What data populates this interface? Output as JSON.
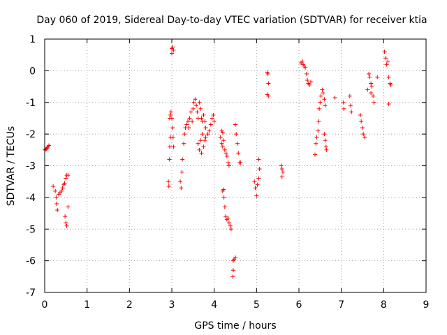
{
  "chart_data": {
    "type": "scatter",
    "title": "Day 060 of 2019, Sidereal Day-to-day VTEC variation (SDTVAR) for receiver ktia",
    "xlabel": "GPS time / hours",
    "ylabel": "SDTVAR / TECUs",
    "xlim": [
      0,
      9
    ],
    "ylim": [
      -7,
      1
    ],
    "xticks": [
      "0",
      "1",
      "2",
      "3",
      "4",
      "5",
      "6",
      "7",
      "8",
      "9"
    ],
    "yticks": [
      "1",
      "0",
      "-1",
      "-2",
      "-3",
      "-4",
      "-5",
      "-6",
      "-7"
    ],
    "grid": true,
    "marker": "+",
    "color": "#ff0000",
    "series": [
      {
        "name": "SDTVAR",
        "points": [
          [
            0.0,
            -2.5
          ],
          [
            0.02,
            -2.48
          ],
          [
            0.04,
            -2.46
          ],
          [
            0.06,
            -2.44
          ],
          [
            0.08,
            -2.4
          ],
          [
            0.1,
            -2.36
          ],
          [
            0.2,
            -3.65
          ],
          [
            0.25,
            -3.8
          ],
          [
            0.27,
            -4.0
          ],
          [
            0.28,
            -4.2
          ],
          [
            0.3,
            -4.4
          ],
          [
            0.33,
            -3.9
          ],
          [
            0.36,
            -3.85
          ],
          [
            0.4,
            -3.8
          ],
          [
            0.42,
            -3.7
          ],
          [
            0.45,
            -3.6
          ],
          [
            0.47,
            -3.55
          ],
          [
            0.5,
            -3.4
          ],
          [
            0.52,
            -3.3
          ],
          [
            0.55,
            -3.3
          ],
          [
            0.48,
            -4.6
          ],
          [
            0.5,
            -4.8
          ],
          [
            0.52,
            -4.9
          ],
          [
            0.55,
            -4.3
          ],
          [
            2.92,
            -3.5
          ],
          [
            2.93,
            -3.65
          ],
          [
            2.94,
            -2.8
          ],
          [
            2.95,
            -2.4
          ],
          [
            2.97,
            -2.1
          ],
          [
            2.95,
            -1.5
          ],
          [
            2.97,
            -1.4
          ],
          [
            2.98,
            -1.3
          ],
          [
            3.0,
            -1.5
          ],
          [
            3.02,
            -1.8
          ],
          [
            3.03,
            -2.1
          ],
          [
            3.04,
            -2.4
          ],
          [
            3.0,
            0.7
          ],
          [
            3.02,
            0.75
          ],
          [
            3.04,
            0.65
          ],
          [
            3.0,
            0.55
          ],
          [
            3.2,
            -3.5
          ],
          [
            3.22,
            -3.7
          ],
          [
            3.24,
            -3.2
          ],
          [
            3.25,
            -2.8
          ],
          [
            3.28,
            -2.3
          ],
          [
            3.3,
            -2.0
          ],
          [
            3.32,
            -1.8
          ],
          [
            3.35,
            -1.7
          ],
          [
            3.38,
            -1.6
          ],
          [
            3.4,
            -1.8
          ],
          [
            3.42,
            -1.5
          ],
          [
            3.45,
            -1.3
          ],
          [
            3.48,
            -1.6
          ],
          [
            3.5,
            -1.2
          ],
          [
            3.52,
            -1.0
          ],
          [
            3.55,
            -0.9
          ],
          [
            3.58,
            -1.1
          ],
          [
            3.6,
            -1.3
          ],
          [
            3.62,
            -1.5
          ],
          [
            3.65,
            -1.0
          ],
          [
            3.68,
            -1.2
          ],
          [
            3.7,
            -1.5
          ],
          [
            3.72,
            -1.6
          ],
          [
            3.75,
            -1.4
          ],
          [
            3.78,
            -1.6
          ],
          [
            3.8,
            -1.8
          ],
          [
            3.62,
            -2.3
          ],
          [
            3.65,
            -2.5
          ],
          [
            3.68,
            -2.2
          ],
          [
            3.7,
            -2.6
          ],
          [
            3.72,
            -2.0
          ],
          [
            3.75,
            -2.4
          ],
          [
            3.78,
            -2.2
          ],
          [
            3.8,
            -2.1
          ],
          [
            3.85,
            -2.0
          ],
          [
            3.88,
            -1.9
          ],
          [
            3.92,
            -1.7
          ],
          [
            3.95,
            -1.5
          ],
          [
            3.98,
            -1.4
          ],
          [
            4.0,
            -1.6
          ],
          [
            4.15,
            -2.1
          ],
          [
            4.18,
            -2.3
          ],
          [
            4.2,
            -2.4
          ],
          [
            4.22,
            -2.2
          ],
          [
            4.25,
            -2.5
          ],
          [
            4.28,
            -2.6
          ],
          [
            4.3,
            -2.7
          ],
          [
            4.33,
            -2.9
          ],
          [
            4.35,
            -3.0
          ],
          [
            4.18,
            -1.9
          ],
          [
            4.2,
            -1.95
          ],
          [
            4.2,
            -3.8
          ],
          [
            4.22,
            -3.75
          ],
          [
            4.23,
            -4.0
          ],
          [
            4.25,
            -4.3
          ],
          [
            4.27,
            -4.6
          ],
          [
            4.3,
            -4.7
          ],
          [
            4.33,
            -4.65
          ],
          [
            4.35,
            -4.8
          ],
          [
            4.38,
            -4.9
          ],
          [
            4.4,
            -5.0
          ],
          [
            4.45,
            -6.0
          ],
          [
            4.47,
            -5.95
          ],
          [
            4.5,
            -5.9
          ],
          [
            4.45,
            -6.3
          ],
          [
            4.44,
            -6.5
          ],
          [
            4.5,
            -1.7
          ],
          [
            4.52,
            -2.0
          ],
          [
            4.55,
            -2.3
          ],
          [
            4.57,
            -2.6
          ],
          [
            4.6,
            -2.9
          ],
          [
            4.62,
            -2.9
          ],
          [
            4.95,
            -3.5
          ],
          [
            4.97,
            -3.7
          ],
          [
            5.0,
            -3.95
          ],
          [
            5.02,
            -3.6
          ],
          [
            5.05,
            -3.4
          ],
          [
            5.07,
            -3.1
          ],
          [
            5.05,
            -2.8
          ],
          [
            5.25,
            -0.05
          ],
          [
            5.27,
            -0.1
          ],
          [
            5.28,
            -0.4
          ],
          [
            5.25,
            -0.75
          ],
          [
            5.28,
            -0.8
          ],
          [
            5.58,
            -3.0
          ],
          [
            5.6,
            -3.1
          ],
          [
            5.62,
            -3.2
          ],
          [
            5.6,
            -3.35
          ],
          [
            6.05,
            0.25
          ],
          [
            6.08,
            0.3
          ],
          [
            6.1,
            0.2
          ],
          [
            6.12,
            0.15
          ],
          [
            6.15,
            0.1
          ],
          [
            6.18,
            -0.1
          ],
          [
            6.2,
            -0.3
          ],
          [
            6.22,
            -0.4
          ],
          [
            6.25,
            -0.45
          ],
          [
            6.28,
            -0.35
          ],
          [
            6.38,
            -2.65
          ],
          [
            6.4,
            -2.3
          ],
          [
            6.42,
            -2.1
          ],
          [
            6.45,
            -1.9
          ],
          [
            6.47,
            -1.6
          ],
          [
            6.48,
            -1.2
          ],
          [
            6.5,
            -1.0
          ],
          [
            6.52,
            -0.8
          ],
          [
            6.55,
            -0.6
          ],
          [
            6.57,
            -0.7
          ],
          [
            6.6,
            -0.9
          ],
          [
            6.62,
            -1.1
          ],
          [
            6.6,
            -2.0
          ],
          [
            6.62,
            -2.2
          ],
          [
            6.64,
            -2.4
          ],
          [
            6.65,
            -2.5
          ],
          [
            6.85,
            -0.85
          ],
          [
            7.05,
            -1.0
          ],
          [
            7.06,
            -1.2
          ],
          [
            7.2,
            -0.8
          ],
          [
            7.22,
            -1.1
          ],
          [
            7.24,
            -1.3
          ],
          [
            7.45,
            -1.4
          ],
          [
            7.47,
            -1.6
          ],
          [
            7.5,
            -1.8
          ],
          [
            7.52,
            -2.0
          ],
          [
            7.55,
            -2.1
          ],
          [
            7.62,
            -0.6
          ],
          [
            7.65,
            -0.1
          ],
          [
            7.67,
            -0.2
          ],
          [
            7.7,
            -0.4
          ],
          [
            7.72,
            -0.5
          ],
          [
            7.75,
            -0.8
          ],
          [
            7.77,
            -1.0
          ],
          [
            7.7,
            -0.7
          ],
          [
            7.85,
            -0.2
          ],
          [
            8.02,
            0.6
          ],
          [
            8.05,
            0.4
          ],
          [
            8.07,
            0.2
          ],
          [
            8.1,
            0.3
          ],
          [
            8.12,
            -0.2
          ],
          [
            8.15,
            -0.4
          ],
          [
            8.17,
            -0.45
          ],
          [
            8.12,
            -1.05
          ]
        ]
      }
    ]
  }
}
